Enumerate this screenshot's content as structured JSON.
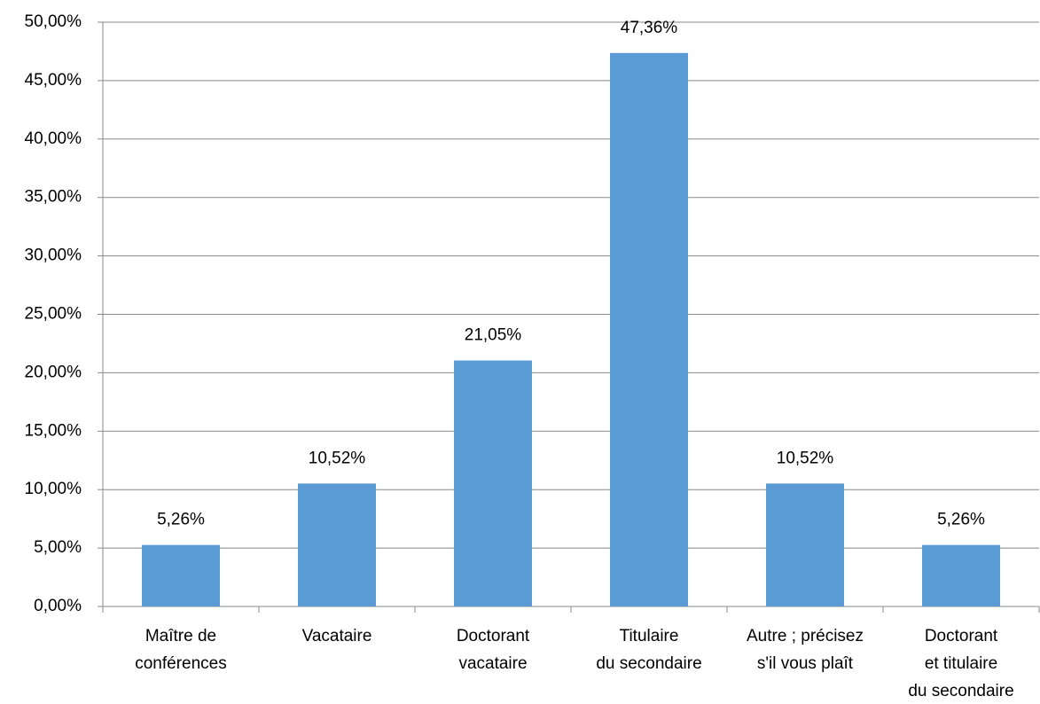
{
  "chart_data": {
    "type": "bar",
    "categories": [
      [
        "Maître de",
        "conférences"
      ],
      [
        "Vacataire"
      ],
      [
        "Doctorant",
        "vacataire"
      ],
      [
        "Titulaire",
        "du secondaire"
      ],
      [
        "Autre ; précisez",
        "s'il vous plaît"
      ],
      [
        "Doctorant",
        "et titulaire",
        "du secondaire"
      ]
    ],
    "values": [
      5.26,
      10.52,
      21.05,
      47.36,
      10.52,
      5.26
    ],
    "value_labels": [
      "5,26%",
      "10,52%",
      "21,05%",
      "47,36%",
      "10,52%",
      "5,26%"
    ],
    "color": "#5b9bd5",
    "ylim": [
      0,
      50
    ],
    "yticks": [
      {
        "value": 0,
        "label": "0,00%"
      },
      {
        "value": 5,
        "label": "5,00%"
      },
      {
        "value": 10,
        "label": "10,00%"
      },
      {
        "value": 15,
        "label": "15,00%"
      },
      {
        "value": 20,
        "label": "20,00%"
      },
      {
        "value": 25,
        "label": "25,00%"
      },
      {
        "value": 30,
        "label": "30,00%"
      },
      {
        "value": 35,
        "label": "35,00%"
      },
      {
        "value": 40,
        "label": "40,00%"
      },
      {
        "value": 45,
        "label": "45,00%"
      },
      {
        "value": 50,
        "label": "50,00%"
      }
    ],
    "grid": true
  }
}
